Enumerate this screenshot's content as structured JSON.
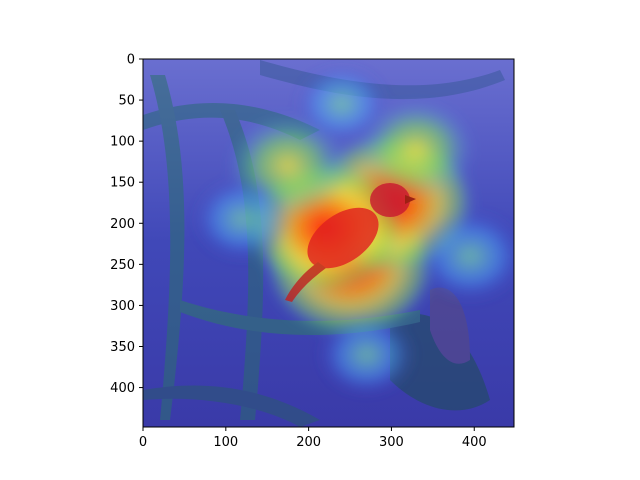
{
  "chart_data": {
    "type": "heatmap",
    "title": "",
    "xlabel": "",
    "ylabel": "",
    "xlim": [
      0,
      448
    ],
    "ylim": [
      448,
      0
    ],
    "x_ticks": [
      0,
      100,
      200,
      300,
      400
    ],
    "y_ticks": [
      0,
      50,
      100,
      150,
      200,
      250,
      300,
      350,
      400
    ],
    "colormap": "jet",
    "image_size": [
      448,
      448
    ],
    "image_content": "bird perched on leafy plant with attention heatmap overlay",
    "overlay_hotspots": [
      {
        "x": 250,
        "y": 250,
        "intensity": 1.0
      },
      {
        "x": 300,
        "y": 175,
        "intensity": 0.95
      },
      {
        "x": 220,
        "y": 205,
        "intensity": 0.85
      },
      {
        "x": 175,
        "y": 130,
        "intensity": 0.55
      },
      {
        "x": 330,
        "y": 110,
        "intensity": 0.5
      },
      {
        "x": 395,
        "y": 240,
        "intensity": 0.45
      },
      {
        "x": 120,
        "y": 195,
        "intensity": 0.35
      },
      {
        "x": 270,
        "y": 360,
        "intensity": 0.35
      },
      {
        "x": 240,
        "y": 55,
        "intensity": 0.3
      }
    ],
    "colors": {
      "cold": "#3a3ac8",
      "cool": "#4aa0ff",
      "mid": "#7fe060",
      "warm": "#f2e040",
      "hot": "#ff2a10"
    }
  }
}
